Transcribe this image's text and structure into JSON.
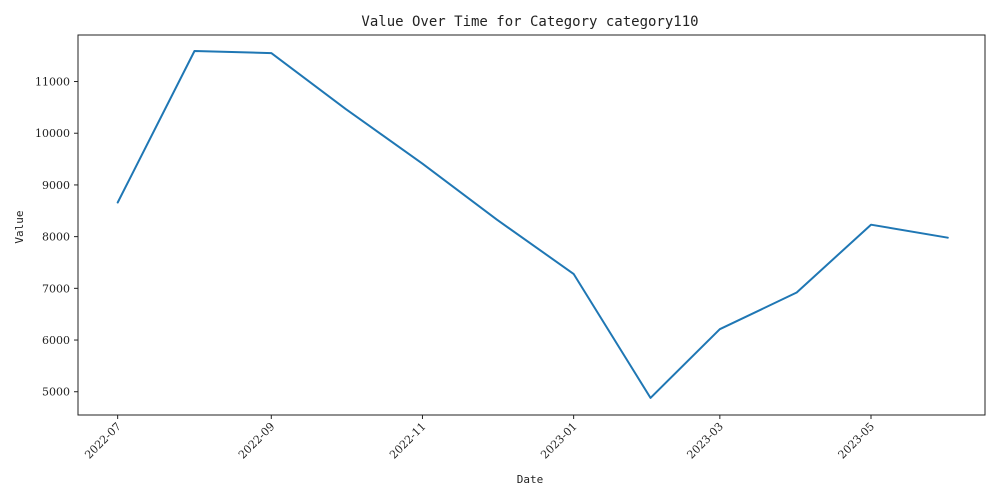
{
  "chart_data": {
    "type": "line",
    "title": "Value Over Time for Category category110",
    "xlabel": "Date",
    "ylabel": "Value",
    "x": [
      "2022-07-01",
      "2022-08-01",
      "2022-09-01",
      "2022-10-01",
      "2022-11-01",
      "2022-12-01",
      "2023-01-01",
      "2023-02-01",
      "2023-03-01",
      "2023-04-01",
      "2023-05-01",
      "2023-06-01"
    ],
    "series": [
      {
        "values": [
          8660,
          11590,
          11550,
          10470,
          9410,
          8330,
          7280,
          4880,
          6210,
          6920,
          8230,
          7980
        ]
      }
    ],
    "x_ticks": [
      "2022-07",
      "2022-09",
      "2022-11",
      "2023-01",
      "2023-03",
      "2023-05"
    ],
    "y_ticks": [
      5000,
      6000,
      7000,
      8000,
      9000,
      10000,
      11000
    ],
    "xlim": [
      "2022-06-15",
      "2023-06-16"
    ],
    "ylim": [
      4550,
      11900
    ],
    "grid": false,
    "line_color": "#1f77b4"
  }
}
